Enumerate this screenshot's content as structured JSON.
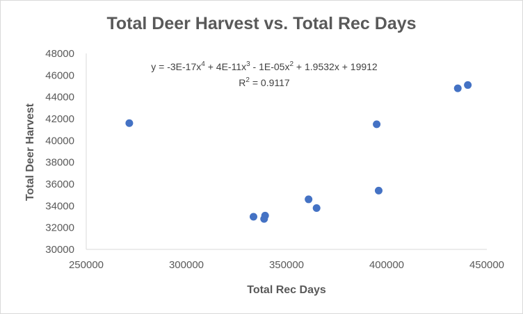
{
  "chart_data": {
    "type": "scatter",
    "title": "Total Deer Harvest vs. Total Rec Days",
    "xlabel": "Total Rec Days",
    "ylabel": "Total Deer Harvest",
    "xlim": [
      250000,
      450000
    ],
    "ylim": [
      30000,
      48000
    ],
    "x_ticks": [
      "250000",
      "300000",
      "350000",
      "400000",
      "450000"
    ],
    "y_ticks": [
      "30000",
      "32000",
      "34000",
      "36000",
      "38000",
      "40000",
      "42000",
      "44000",
      "46000",
      "48000"
    ],
    "x_tick_values": [
      250000,
      300000,
      350000,
      400000,
      450000
    ],
    "y_tick_values": [
      30000,
      32000,
      34000,
      36000,
      38000,
      40000,
      42000,
      44000,
      46000,
      48000
    ],
    "points": [
      {
        "x": 271500,
        "y": 41600
      },
      {
        "x": 333500,
        "y": 33000
      },
      {
        "x": 338800,
        "y": 32800
      },
      {
        "x": 339300,
        "y": 33100
      },
      {
        "x": 361000,
        "y": 34600
      },
      {
        "x": 365000,
        "y": 33800
      },
      {
        "x": 395000,
        "y": 41500
      },
      {
        "x": 396000,
        "y": 35400
      },
      {
        "x": 435500,
        "y": 44800
      },
      {
        "x": 440500,
        "y": 45100
      }
    ],
    "trendline": {
      "type": "polynomial",
      "order": 4,
      "style": "dotted",
      "coefficients": [
        -3e-17,
        4e-11,
        -1e-05,
        1.9532,
        19912
      ],
      "equation_parts": {
        "p1": "y = -3E-17x",
        "e1": "4",
        "p2": " + 4E-11x",
        "e2": "3",
        "p3": " - 1E-05x",
        "e3": "2",
        "p4": " + 1.9532x + 19912"
      },
      "r2_parts": {
        "label": "R",
        "exp": "2",
        "value": " = 0.9117"
      }
    },
    "grid": false,
    "legend": "none",
    "colors": {
      "marker": "#4472c4",
      "trendline": "#4472c4",
      "axis": "#d9d9d9",
      "text": "#595959"
    }
  }
}
